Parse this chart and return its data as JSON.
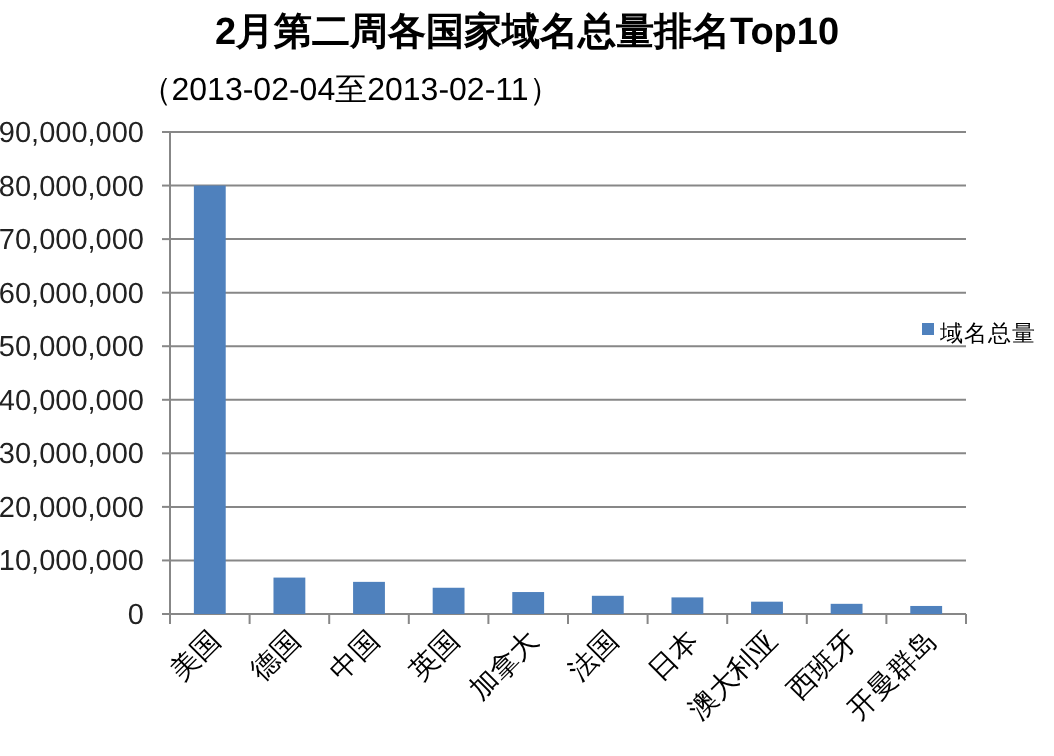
{
  "chart_data": {
    "type": "bar",
    "title": "2月第二周各国家域名总量排名Top10",
    "subtitle": "（2013-02-04至2013-02-11）",
    "categories": [
      "美国",
      "德国",
      "中国",
      "英国",
      "加拿大",
      "法国",
      "日本",
      "澳大利亚",
      "西班牙",
      "开曼群岛"
    ],
    "series": [
      {
        "name": "域名总量",
        "color": "#4f81bd",
        "values": [
          80000000,
          6800000,
          6000000,
          4900000,
          4100000,
          3400000,
          3100000,
          2300000,
          1900000,
          1500000
        ]
      }
    ],
    "ylim": [
      0,
      90000000
    ],
    "yticks": [
      {
        "value": 0,
        "label": "0"
      },
      {
        "value": 10000000,
        "label": "10,000,000"
      },
      {
        "value": 20000000,
        "label": "20,000,000"
      },
      {
        "value": 30000000,
        "label": "30,000,000"
      },
      {
        "value": 40000000,
        "label": "40,000,000"
      },
      {
        "value": 50000000,
        "label": "50,000,000"
      },
      {
        "value": 60000000,
        "label": "60,000,000"
      },
      {
        "value": 70000000,
        "label": "70,000,000"
      },
      {
        "value": 80000000,
        "label": "80,000,000"
      },
      {
        "value": 90000000,
        "label": "90,000,000"
      }
    ],
    "grid": "y",
    "legend": "right"
  }
}
